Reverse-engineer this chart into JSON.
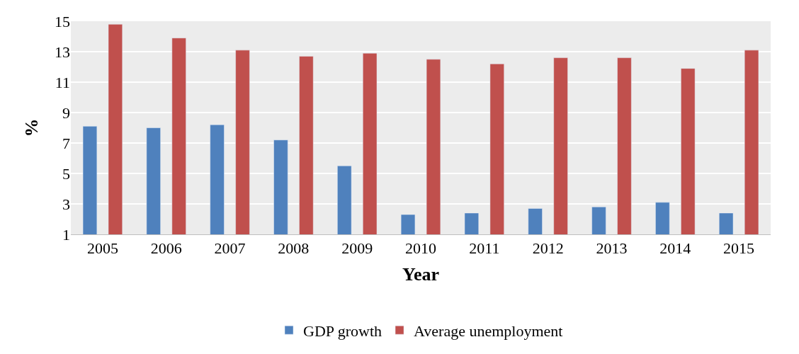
{
  "chart_data": {
    "type": "bar",
    "xlabel": "Year",
    "ylabel": "%",
    "categories": [
      "2005",
      "2006",
      "2007",
      "2008",
      "2009",
      "2010",
      "2011",
      "2012",
      "2013",
      "2014",
      "2015"
    ],
    "series": [
      {
        "name": "GDP growth",
        "color": "#4f81bd",
        "values": [
          8.1,
          8.0,
          8.2,
          7.2,
          5.5,
          2.3,
          2.4,
          2.7,
          2.8,
          3.1,
          2.4
        ]
      },
      {
        "name": "Average unemployment",
        "color": "#c0504d",
        "values": [
          14.8,
          13.9,
          13.1,
          12.7,
          12.9,
          12.5,
          12.2,
          12.6,
          12.6,
          11.9,
          13.1
        ]
      }
    ],
    "ylim": [
      1,
      15
    ],
    "yticks": [
      1,
      3,
      5,
      7,
      9,
      11,
      13,
      15
    ],
    "grid": "y",
    "legend": "bottom"
  }
}
